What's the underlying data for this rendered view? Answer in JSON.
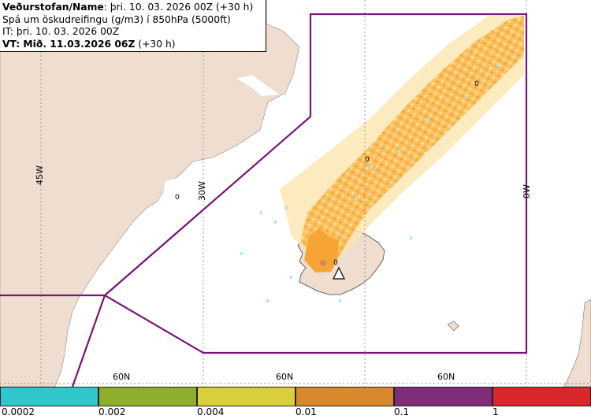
{
  "info": {
    "line1_bold": "Veðurstofan/Name",
    "line1_rest": ": þri. 10. 03. 2026 00Z (+30 h)",
    "line2": "Spá um öskudreifingu (g/m3) í 850hPa (5000ft)",
    "line3": "IT: þri. 10. 03. 2026 00Z",
    "line4_bold": "VT: Mið. 11.03.2026 06Z",
    "line4_rest": " (+30 h)"
  },
  "map": {
    "lon_labels": [
      "45W",
      "30W",
      "0W"
    ],
    "lat_labels": [
      "60N",
      "60N",
      "60N"
    ],
    "contour_marks": [
      "0",
      "0",
      "0",
      "0"
    ],
    "colors": {
      "land": "#efddd0",
      "boundary": "#7a137a",
      "ash_light": "#fde6b0",
      "ash_medium": "#fbbf5a",
      "ash_dense": "#f6a534",
      "cyan_specks": "#a8e8ee"
    }
  },
  "legend": {
    "ticks": [
      "0.0002",
      "0.002",
      "0.004",
      "0.01",
      "0.1",
      "1"
    ],
    "colors": [
      "#2fc7cc",
      "#8fae2e",
      "#d9cf3a",
      "#d9892c",
      "#7f2d79",
      "#d8282c"
    ]
  }
}
